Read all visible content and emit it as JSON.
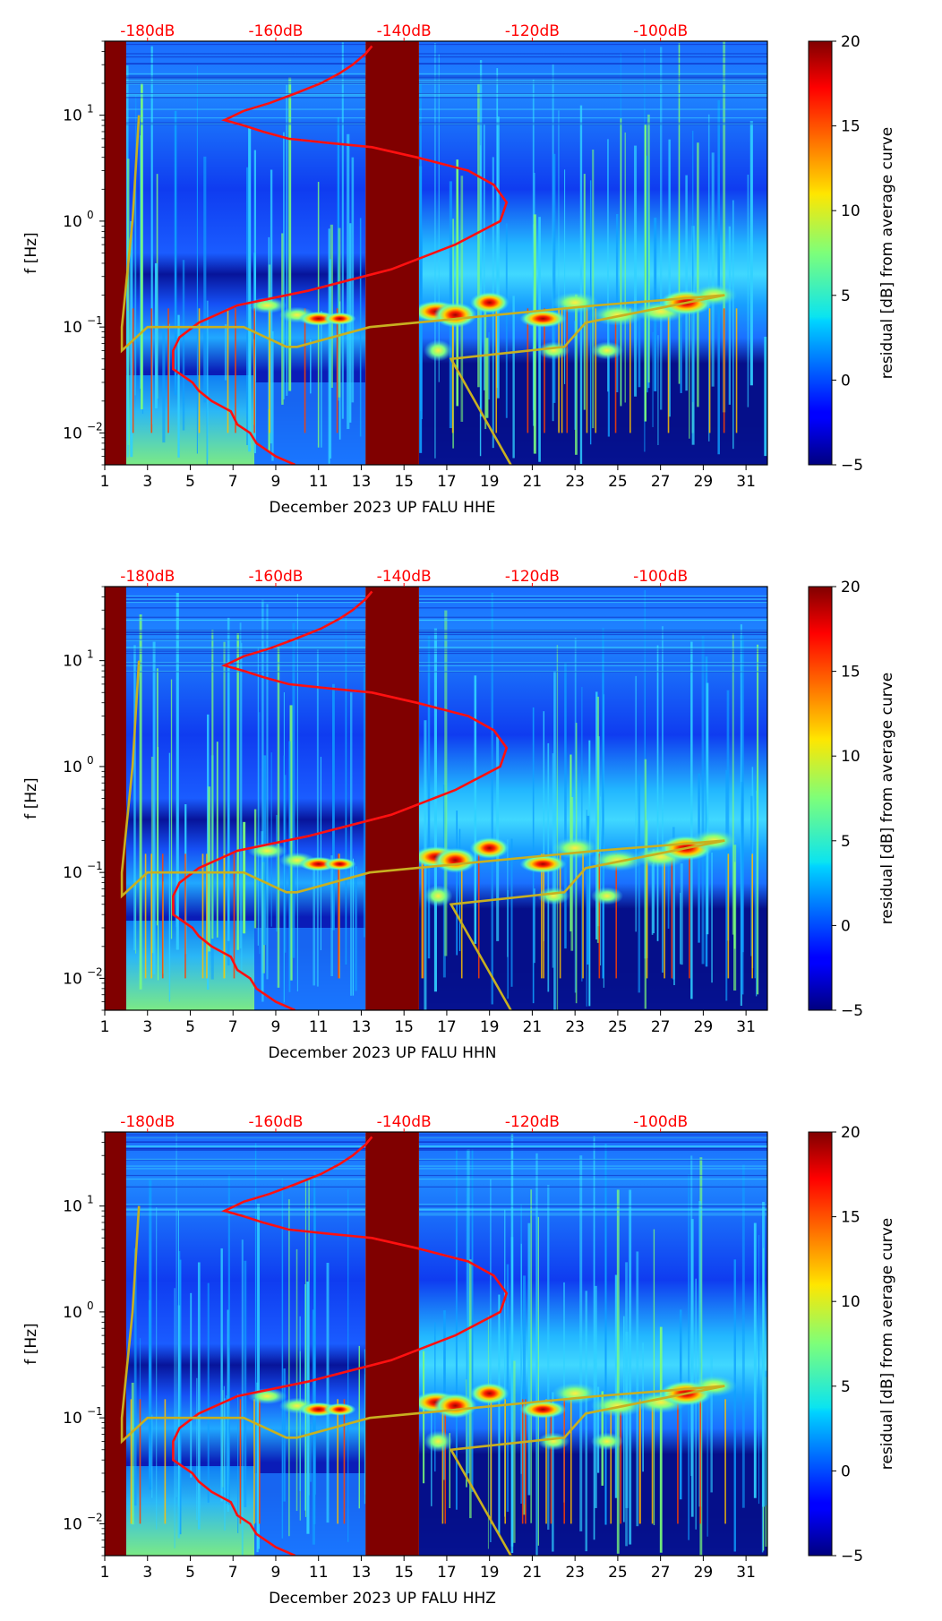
{
  "panels": [
    {
      "xlabel": "December 2023 UP FALU  HHE",
      "ylabel": "f [Hz]",
      "colorbar_label": "residual [dB] from average curve",
      "chart_data": {
        "type": "heatmap",
        "x_label": "December 2023 UP FALU  HHE",
        "y_label": "f [Hz]",
        "y_scale": "log",
        "x_ticks": [
          "1",
          "3",
          "5",
          "7",
          "9",
          "11",
          "13",
          "15",
          "17",
          "19",
          "21",
          "23",
          "25",
          "27",
          "29",
          "31"
        ],
        "y_ticks": [
          "10^-2",
          "10^-1",
          "10^0",
          "10^1"
        ],
        "top_ticks": [
          "-180dB",
          "-160dB",
          "-140dB",
          "-120dB",
          "-100dB"
        ],
        "colorbar": {
          "min": -5,
          "max": 20,
          "ticks": [
            -5,
            0,
            5,
            10,
            15,
            20
          ],
          "cmap": "jet"
        },
        "xlim": [
          1,
          32
        ],
        "ylim": [
          0.005,
          50
        ],
        "gap_days": [
          [
            1,
            2
          ],
          [
            13.2,
            15.7
          ]
        ],
        "red_average_curve": {
          "x_db": [
            -145,
            -146,
            -148,
            -150,
            -153,
            -157,
            -161,
            -165,
            -168,
            -165,
            -162,
            -158,
            -152,
            -145,
            -138,
            -130,
            -126,
            -124,
            -125,
            -132,
            -142,
            -155,
            -166,
            -172,
            -175,
            -176,
            -176,
            -176,
            -173,
            -172,
            -170,
            -167,
            -166,
            -164,
            -163,
            -160,
            -157
          ],
          "freq_hz": [
            45,
            38,
            30,
            25,
            20,
            16,
            13,
            11,
            9,
            8,
            7,
            6,
            5.5,
            5,
            4,
            3,
            2.2,
            1.5,
            1.0,
            0.6,
            0.35,
            0.22,
            0.16,
            0.11,
            0.08,
            0.06,
            0.05,
            0.04,
            0.03,
            0.025,
            0.02,
            0.016,
            0.012,
            0.01,
            0.008,
            0.006,
            0.005
          ]
        },
        "yellow_noise_model_curve": {
          "day": [
            20,
            17.2,
            17.2,
            22.5,
            23.5,
            30,
            24,
            13.4,
            10,
            9.5,
            7.5,
            3,
            1.8,
            1.8,
            2.3,
            2.6
          ],
          "freq_hz": [
            0.005,
            0.05,
            0.05,
            0.065,
            0.11,
            0.2,
            0.16,
            0.1,
            0.065,
            0.065,
            0.1,
            0.1,
            0.06,
            0.1,
            1.0,
            10
          ]
        }
      }
    },
    {
      "xlabel": "December 2023 UP FALU  HHN",
      "ylabel": "f [Hz]",
      "colorbar_label": "residual [dB] from average curve",
      "chart_data": {
        "type": "heatmap",
        "x_label": "December 2023 UP FALU  HHN",
        "y_label": "f [Hz]",
        "y_scale": "log",
        "x_ticks": [
          "1",
          "3",
          "5",
          "7",
          "9",
          "11",
          "13",
          "15",
          "17",
          "19",
          "21",
          "23",
          "25",
          "27",
          "29",
          "31"
        ],
        "y_ticks": [
          "10^-2",
          "10^-1",
          "10^0",
          "10^1"
        ],
        "top_ticks": [
          "-180dB",
          "-160dB",
          "-140dB",
          "-120dB",
          "-100dB"
        ],
        "colorbar": {
          "min": -5,
          "max": 20,
          "ticks": [
            -5,
            0,
            5,
            10,
            15,
            20
          ],
          "cmap": "jet"
        },
        "xlim": [
          1,
          32
        ],
        "ylim": [
          0.005,
          50
        ],
        "gap_days": [
          [
            1,
            2
          ],
          [
            13.2,
            15.7
          ]
        ],
        "red_average_curve": {
          "x_db": [
            -145,
            -146,
            -148,
            -150,
            -153,
            -157,
            -161,
            -165,
            -168,
            -165,
            -162,
            -158,
            -152,
            -145,
            -138,
            -130,
            -126,
            -124,
            -125,
            -132,
            -142,
            -155,
            -166,
            -172,
            -175,
            -176,
            -176,
            -176,
            -173,
            -172,
            -170,
            -167,
            -166,
            -164,
            -163,
            -160,
            -157
          ],
          "freq_hz": [
            45,
            38,
            30,
            25,
            20,
            16,
            13,
            11,
            9,
            8,
            7,
            6,
            5.5,
            5,
            4,
            3,
            2.2,
            1.5,
            1.0,
            0.6,
            0.35,
            0.22,
            0.16,
            0.11,
            0.08,
            0.06,
            0.05,
            0.04,
            0.03,
            0.025,
            0.02,
            0.016,
            0.012,
            0.01,
            0.008,
            0.006,
            0.005
          ]
        },
        "yellow_noise_model_curve": {
          "day": [
            20,
            17.2,
            17.2,
            22.5,
            23.5,
            30,
            24,
            13.4,
            10,
            9.5,
            7.5,
            3,
            1.8,
            1.8,
            2.3,
            2.6
          ],
          "freq_hz": [
            0.005,
            0.05,
            0.05,
            0.065,
            0.11,
            0.2,
            0.16,
            0.1,
            0.065,
            0.065,
            0.1,
            0.1,
            0.06,
            0.1,
            1.0,
            10
          ]
        }
      }
    },
    {
      "xlabel": "December 2023 UP FALU  HHZ",
      "ylabel": "f [Hz]",
      "colorbar_label": "residual [dB] from average curve",
      "chart_data": {
        "type": "heatmap",
        "x_label": "December 2023 UP FALU  HHZ",
        "y_label": "f [Hz]",
        "y_scale": "log",
        "x_ticks": [
          "1",
          "3",
          "5",
          "7",
          "9",
          "11",
          "13",
          "15",
          "17",
          "19",
          "21",
          "23",
          "25",
          "27",
          "29",
          "31"
        ],
        "y_ticks": [
          "10^-2",
          "10^-1",
          "10^0",
          "10^1"
        ],
        "top_ticks": [
          "-180dB",
          "-160dB",
          "-140dB",
          "-120dB",
          "-100dB"
        ],
        "colorbar": {
          "min": -5,
          "max": 20,
          "ticks": [
            -5,
            0,
            5,
            10,
            15,
            20
          ],
          "cmap": "jet"
        },
        "xlim": [
          1,
          32
        ],
        "ylim": [
          0.005,
          50
        ],
        "gap_days": [
          [
            1,
            2
          ],
          [
            13.2,
            15.7
          ]
        ],
        "red_average_curve": {
          "x_db": [
            -145,
            -146,
            -148,
            -150,
            -153,
            -157,
            -161,
            -165,
            -168,
            -165,
            -162,
            -158,
            -152,
            -145,
            -138,
            -130,
            -126,
            -124,
            -125,
            -132,
            -142,
            -155,
            -166,
            -172,
            -175,
            -176,
            -176,
            -176,
            -173,
            -172,
            -170,
            -167,
            -166,
            -164,
            -163,
            -160,
            -157
          ],
          "freq_hz": [
            45,
            38,
            30,
            25,
            20,
            16,
            13,
            11,
            9,
            8,
            7,
            6,
            5.5,
            5,
            4,
            3,
            2.2,
            1.5,
            1.0,
            0.6,
            0.35,
            0.22,
            0.16,
            0.11,
            0.08,
            0.06,
            0.05,
            0.04,
            0.03,
            0.025,
            0.02,
            0.016,
            0.012,
            0.01,
            0.008,
            0.006,
            0.005
          ]
        },
        "yellow_noise_model_curve": {
          "day": [
            20,
            17.2,
            17.2,
            22.5,
            23.5,
            30,
            24,
            13.4,
            10,
            9.5,
            7.5,
            3,
            1.8,
            1.8,
            2.3,
            2.6
          ],
          "freq_hz": [
            0.005,
            0.05,
            0.05,
            0.065,
            0.11,
            0.2,
            0.16,
            0.1,
            0.065,
            0.065,
            0.1,
            0.1,
            0.06,
            0.1,
            1.0,
            10
          ]
        }
      }
    }
  ],
  "colors": {
    "red_curve": "#ff1010",
    "yellow_curve": "#c8b020",
    "gap": "#800000",
    "dark_blue": "#00007a"
  }
}
